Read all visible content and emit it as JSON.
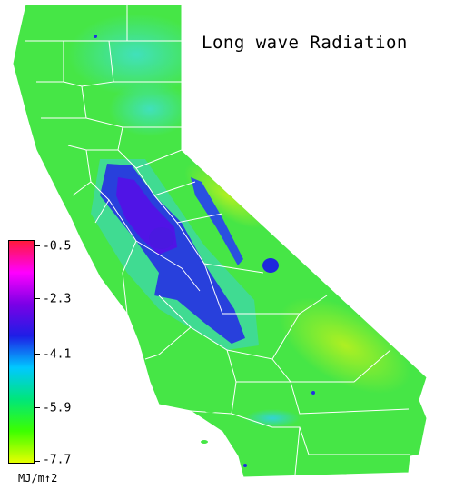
{
  "title": "Long wave Radiation",
  "legend": {
    "units": "MJ/m↑2",
    "ticks": [
      "-0.5",
      "-2.3",
      "-4.1",
      "-5.9",
      "-7.7"
    ],
    "gradient_colors": [
      "#ff1a3c",
      "#ff00ff",
      "#7a00e6",
      "#1e1ee6",
      "#00c8ff",
      "#00e67a",
      "#3cff00",
      "#e6ff00"
    ]
  },
  "colors": {
    "state_fill": "#46e646",
    "cyan_region": "#3ce6b4",
    "blue_valley": "#2840dc",
    "purple_valley": "#5014e6",
    "desert_yellow": "#a0f028",
    "boundary": "#ffffff"
  }
}
